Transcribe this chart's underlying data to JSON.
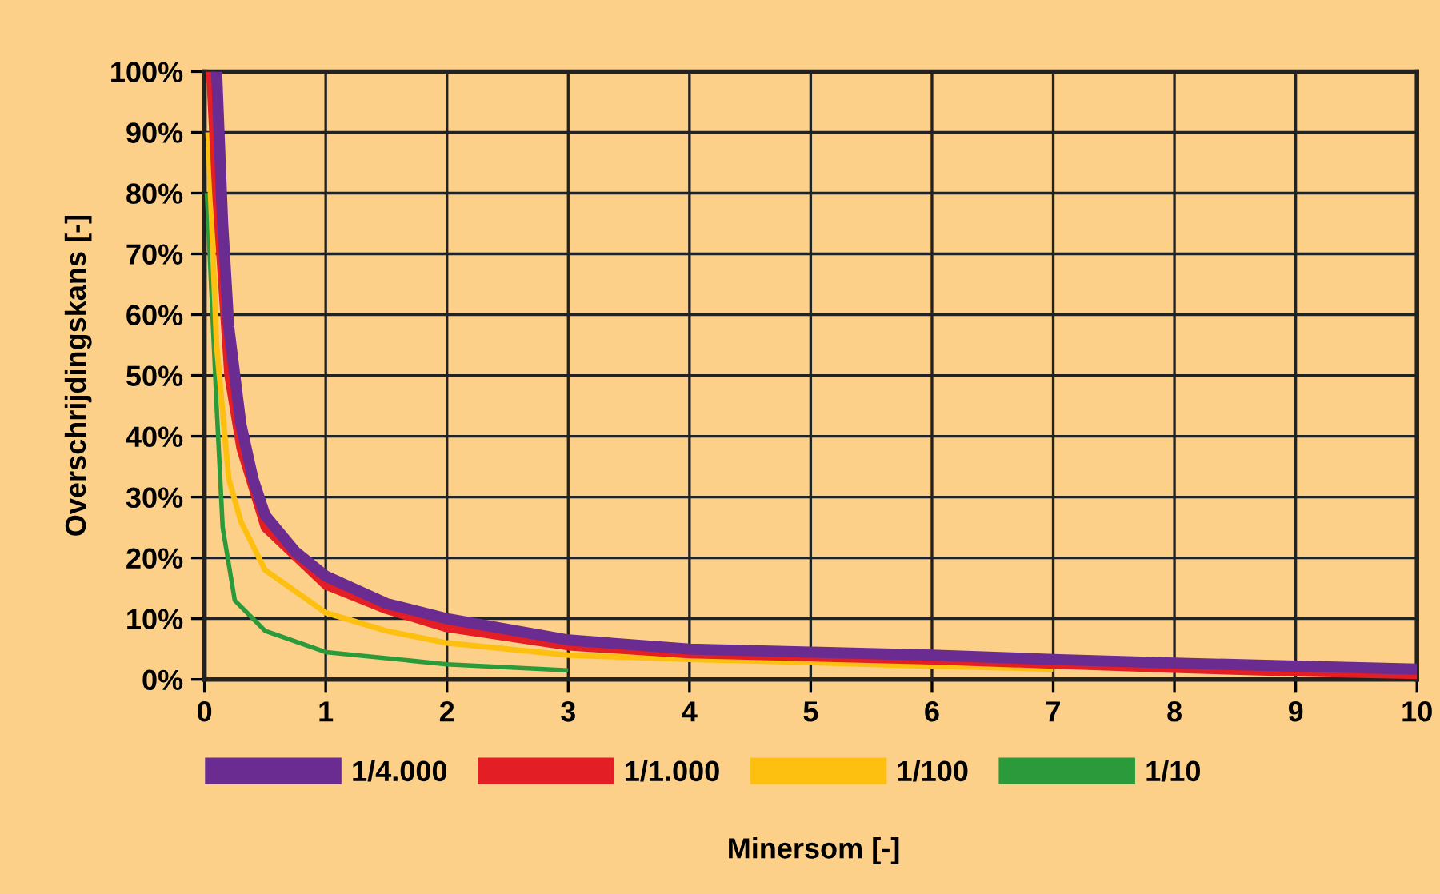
{
  "chart_data": {
    "type": "line",
    "xlabel": "Minersom [-]",
    "ylabel": "Overschrijdingskans [-]",
    "xlim": [
      0,
      10
    ],
    "xticks": [
      0,
      1,
      2,
      3,
      4,
      5,
      6,
      7,
      8,
      9,
      10
    ],
    "ylim": [
      0,
      100
    ],
    "yticks": [
      {
        "value": 0,
        "label": "0%"
      },
      {
        "value": 10,
        "label": "10%"
      },
      {
        "value": 20,
        "label": "20%"
      },
      {
        "value": 30,
        "label": "30%"
      },
      {
        "value": 40,
        "label": "40%"
      },
      {
        "value": 50,
        "label": "50%"
      },
      {
        "value": 60,
        "label": "60%"
      },
      {
        "value": 70,
        "label": "70%"
      },
      {
        "value": 80,
        "label": "80%"
      },
      {
        "value": 90,
        "label": "90%"
      },
      {
        "value": 100,
        "label": "100%"
      }
    ],
    "grid": true,
    "legend": "bottom",
    "marker": "none",
    "line_style": "solid",
    "series": [
      {
        "name": "1/4.000",
        "color": "#6a2c91",
        "x": [
          0.1,
          0.15,
          0.2,
          0.3,
          0.4,
          0.5,
          0.75,
          1,
          1.5,
          2,
          3,
          4,
          5,
          6,
          7,
          8,
          9,
          10
        ],
        "values": [
          100,
          75,
          58,
          42,
          33,
          27,
          21,
          17,
          12.5,
          10,
          6.5,
          5,
          4.5,
          4,
          3.3,
          2.7,
          2.2,
          1.7
        ]
      },
      {
        "name": "1/1.000",
        "color": "#e31e24",
        "x": [
          0.05,
          0.1,
          0.2,
          0.3,
          0.5,
          1,
          1.5,
          2,
          3,
          4,
          5,
          6,
          7,
          8,
          9,
          10
        ],
        "values": [
          100,
          80,
          50,
          38,
          25,
          15.5,
          11.5,
          8.5,
          5.5,
          4.2,
          3.7,
          3.2,
          2.5,
          1.8,
          1.2,
          0.8
        ]
      },
      {
        "name": "1/100",
        "color": "#fdc010",
        "x": [
          0.03,
          0.1,
          0.2,
          0.3,
          0.5,
          1,
          1.5,
          2,
          3,
          4,
          5,
          6,
          7
        ],
        "values": [
          90,
          55,
          33,
          26,
          18,
          11,
          8,
          6,
          4,
          3.3,
          2.8,
          2.2,
          1.7
        ]
      },
      {
        "name": "1/10",
        "color": "#2a9a3a",
        "x": [
          0.02,
          0.1,
          0.15,
          0.25,
          0.5,
          1,
          2,
          3
        ],
        "values": [
          80,
          45,
          25,
          13,
          8,
          4.5,
          2.5,
          1.5
        ]
      }
    ]
  }
}
